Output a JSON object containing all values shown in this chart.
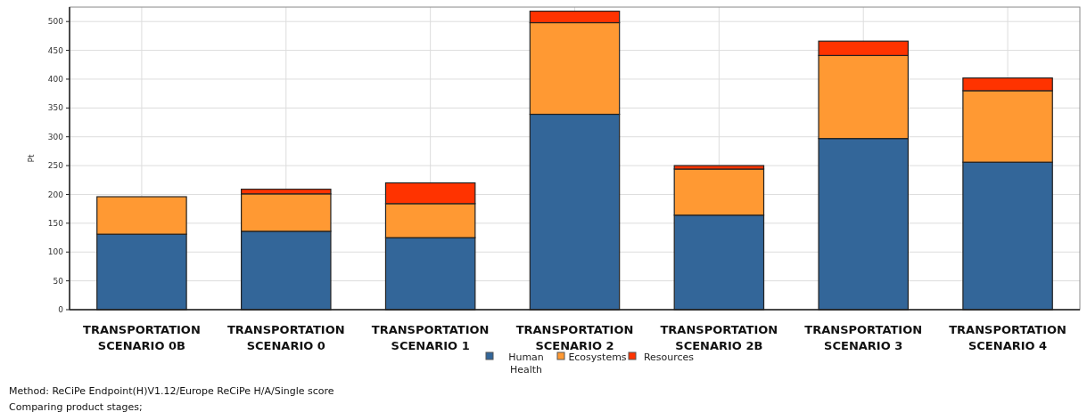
{
  "chart_data": {
    "type": "bar",
    "stacked": true,
    "ylabel": "Pt",
    "categories": [
      "TRANSPORTATION SCENARIO 0B",
      "TRANSPORTATION SCENARIO 0",
      "TRANSPORTATION SCENARIO 1",
      "TRANSPORTATION SCENARIO 2",
      "TRANSPORTATION SCENARIO 2B",
      "TRANSPORTATION SCENARIO 3",
      "TRANSPORTATION SCENARIO 4"
    ],
    "series": [
      {
        "name": "Human Health",
        "color": "#336699",
        "values": [
          131,
          136,
          125,
          339,
          164,
          297,
          256
        ]
      },
      {
        "name": "Ecosystems",
        "color": "#ff9933",
        "values": [
          65,
          65,
          59,
          159,
          80,
          144,
          124
        ]
      },
      {
        "name": "Resources",
        "color": "#ff3300",
        "values": [
          0,
          8,
          36,
          20,
          6,
          25,
          22
        ]
      }
    ],
    "ylim": [
      0,
      525
    ],
    "yticks": [
      0,
      50,
      100,
      150,
      200,
      250,
      300,
      350,
      400,
      450,
      500
    ],
    "grid": true,
    "legend": "bottom",
    "annotations": [
      "Method: ReCiPe Endpoint(H)V1.12/Europe ReCiPe H/A/Single score",
      "Comparing product stages;"
    ]
  }
}
